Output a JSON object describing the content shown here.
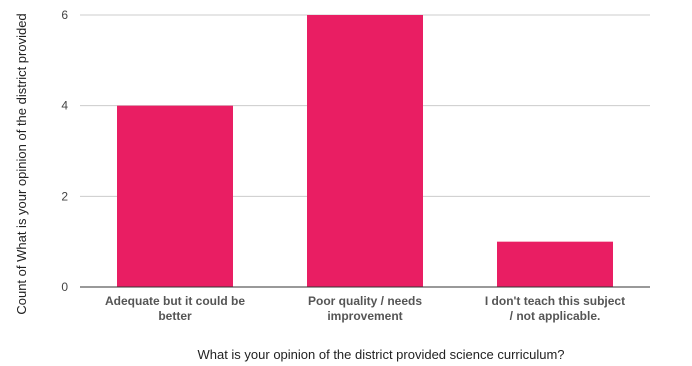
{
  "colors": {
    "bar": "#e91e63",
    "grid": "#cccccc",
    "axis": "#333333"
  },
  "chart_data": {
    "type": "bar",
    "title": "",
    "xlabel": "What is your opinion of the district provided science curriculum?",
    "ylabel": "Count of What is your opinion of the district provided",
    "categories": [
      "Adequate but it could be better",
      "Poor quality / needs improvement",
      "I don't teach this subject / not applicable."
    ],
    "values": [
      4,
      6,
      1
    ],
    "ylim": [
      0,
      6
    ],
    "yticks": [
      0,
      2,
      4,
      6
    ],
    "grid": true,
    "legend": "none"
  }
}
